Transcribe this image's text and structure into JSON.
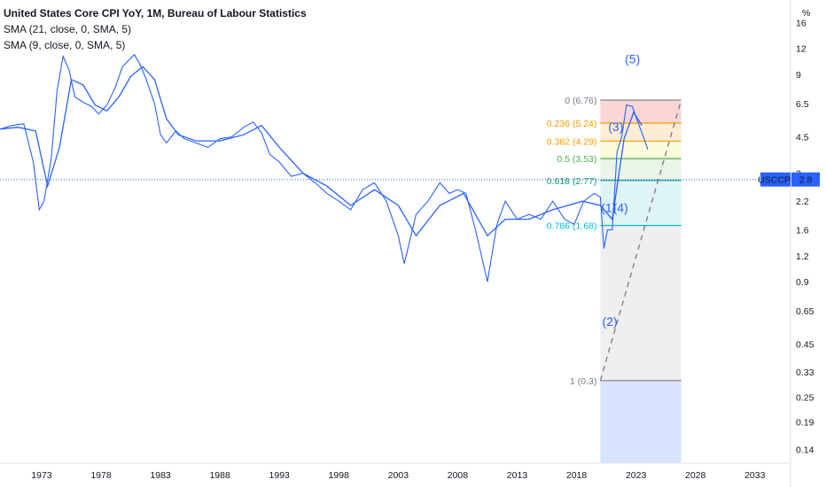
{
  "legend": {
    "title": "United States Core CPI YoY, 1M, Bureau of Labour Statistics",
    "sma1": "SMA (21, close, 0, SMA, 5)",
    "sma2": "SMA (9, close, 0, SMA, 5)"
  },
  "colors": {
    "price": "#2962ff",
    "price_line": "#2962ff",
    "tag_bg": "#2962ff",
    "fib_0": "#f4a3a3",
    "fib_236": "#fbd7a3",
    "fib_382": "#f7f3b0",
    "fib_5": "#cfe9c8",
    "fib_618": "#b7e6e6",
    "fib_786": "#dcdcdc",
    "fib_1": "#d3e0ff",
    "label_0": "#787b86",
    "label_236": "#ff9800",
    "label_382": "#ff9800",
    "label_5": "#4caf50",
    "label_618": "#089981",
    "label_786": "#00bcd4",
    "label_1": "#787b86"
  },
  "chart_data": {
    "type": "line",
    "y_scale": "log",
    "y_unit": "%",
    "ylim": [
      0.12,
      19
    ],
    "xlim": [
      1969.5,
      2036
    ],
    "x_ticks": [
      "1973",
      "1978",
      "1983",
      "1988",
      "1993",
      "1998",
      "2003",
      "2008",
      "2013",
      "2018",
      "2023",
      "2028",
      "2033"
    ],
    "x_tick_values": [
      1973,
      1978,
      1983,
      1988,
      1993,
      1998,
      2003,
      2008,
      2013,
      2018,
      2023,
      2028,
      2033
    ],
    "y_ticks": [
      "16",
      "12",
      "9",
      "6.5",
      "4.5",
      "3",
      "2.2",
      "1.6",
      "1.2",
      "0.9",
      "0.65",
      "0.45",
      "0.33",
      "0.25",
      "0.19",
      "0.14"
    ],
    "y_tick_values": [
      16,
      12,
      9,
      6.5,
      4.5,
      3,
      2.2,
      1.6,
      1.2,
      0.9,
      0.65,
      0.45,
      0.33,
      0.25,
      0.19,
      0.14
    ],
    "last_value": {
      "symbol": "USCCPI",
      "value": "2.8",
      "y": 2.8
    },
    "series": [
      {
        "name": "United States Core CPI YoY",
        "x": [
          1969.5,
          1970.5,
          1971.5,
          1972.3,
          1972.8,
          1973.2,
          1973.8,
          1974.3,
          1974.8,
          1975.3,
          1975.8,
          1976.5,
          1977.2,
          1977.8,
          1978.5,
          1979.2,
          1979.8,
          1980.3,
          1980.8,
          1981.3,
          1981.8,
          1982.5,
          1983.0,
          1983.5,
          1984.3,
          1985.0,
          1986.0,
          1987.0,
          1988.0,
          1989.0,
          1990.0,
          1990.8,
          1991.5,
          1992.2,
          1993.0,
          1994.0,
          1995.0,
          1996.0,
          1997.0,
          1998.0,
          1999.0,
          2000.0,
          2001.0,
          2002.0,
          2003.0,
          2003.5,
          2004.5,
          2005.5,
          2006.5,
          2007.3,
          2008.0,
          2008.7,
          2009.5,
          2010.5,
          2011.3,
          2012.0,
          2013.0,
          2014.0,
          2015.0,
          2016.0,
          2017.0,
          2017.8,
          2018.6,
          2019.5,
          2020.0,
          2020.3,
          2020.6,
          2021.0,
          2021.4,
          2021.8,
          2022.2,
          2022.7,
          2023.0,
          2023.5,
          2024.0
        ],
        "y": [
          4.9,
          5.1,
          5.2,
          3.4,
          2.0,
          2.2,
          3.5,
          7.5,
          11.0,
          9.5,
          7.0,
          6.6,
          6.3,
          5.8,
          6.4,
          7.8,
          9.8,
          10.5,
          11.2,
          10.0,
          8.5,
          6.5,
          4.6,
          4.2,
          4.8,
          4.4,
          4.2,
          4.0,
          4.4,
          4.5,
          5.0,
          5.3,
          4.7,
          3.7,
          3.4,
          2.9,
          3.0,
          2.7,
          2.4,
          2.2,
          2.0,
          2.5,
          2.7,
          2.2,
          1.5,
          1.1,
          1.9,
          2.2,
          2.7,
          2.4,
          2.5,
          2.4,
          1.6,
          0.9,
          1.7,
          2.2,
          1.8,
          1.9,
          1.8,
          2.2,
          1.8,
          1.7,
          2.2,
          2.4,
          2.3,
          1.3,
          1.6,
          1.6,
          3.8,
          4.5,
          6.4,
          6.3,
          5.6,
          4.7,
          3.9
        ]
      },
      {
        "name": "SMA (21, close, 0, SMA, 5)",
        "x": [
          1969.5,
          1971.0,
          1972.5,
          1973.5,
          1974.5,
          1975.5,
          1976.5,
          1977.5,
          1978.5,
          1979.5,
          1980.5,
          1981.5,
          1982.5,
          1983.5,
          1984.5,
          1986.0,
          1988.0,
          1990.0,
          1991.5,
          1993.0,
          1995.0,
          1997.0,
          1999.0,
          2001.0,
          2003.0,
          2004.5,
          2006.5,
          2008.5,
          2010.5,
          2012.0,
          2014.0,
          2016.0,
          2018.5,
          2020.0,
          2021.0,
          2022.0,
          2022.8,
          2023.5
        ],
        "y": [
          4.9,
          5.0,
          4.8,
          2.6,
          4.0,
          8.5,
          8.0,
          6.4,
          6.0,
          7.0,
          8.8,
          9.8,
          8.5,
          5.5,
          4.6,
          4.3,
          4.3,
          4.6,
          5.1,
          4.0,
          3.0,
          2.6,
          2.1,
          2.5,
          2.1,
          1.5,
          2.1,
          2.4,
          1.5,
          1.8,
          1.8,
          2.0,
          2.2,
          2.1,
          1.8,
          4.4,
          5.9,
          5.1
        ]
      }
    ],
    "fibonacci": [
      {
        "ratio": "0",
        "value": "6.76",
        "label": "0 (6.76)"
      },
      {
        "ratio": "0.236",
        "value": "5.24",
        "label": "0.236 (5.24)"
      },
      {
        "ratio": "0.382",
        "value": "4.29",
        "label": "0.382 (4.29)"
      },
      {
        "ratio": "0.5",
        "value": "3.53",
        "label": "0.5 (3.53)"
      },
      {
        "ratio": "0.618",
        "value": "2.77",
        "label": "0.618 (2.77)"
      },
      {
        "ratio": "0.786",
        "value": "1.68",
        "label": "0.786 (1.68)"
      },
      {
        "ratio": "1",
        "value": "0.3",
        "label": "1 (0.3)"
      }
    ],
    "fib_x_range": [
      2020.0,
      2026.8
    ],
    "wave_labels": [
      {
        "text": "(1)",
        "x": 2020.7,
        "y": 1.95
      },
      {
        "text": "(2)",
        "x": 2020.8,
        "y": 0.55
      },
      {
        "text": "(3)",
        "x": 2021.3,
        "y": 4.8
      },
      {
        "text": "(4)",
        "x": 2021.7,
        "y": 1.95
      },
      {
        "text": "(5)",
        "x": 2022.7,
        "y": 10.2
      }
    ]
  }
}
